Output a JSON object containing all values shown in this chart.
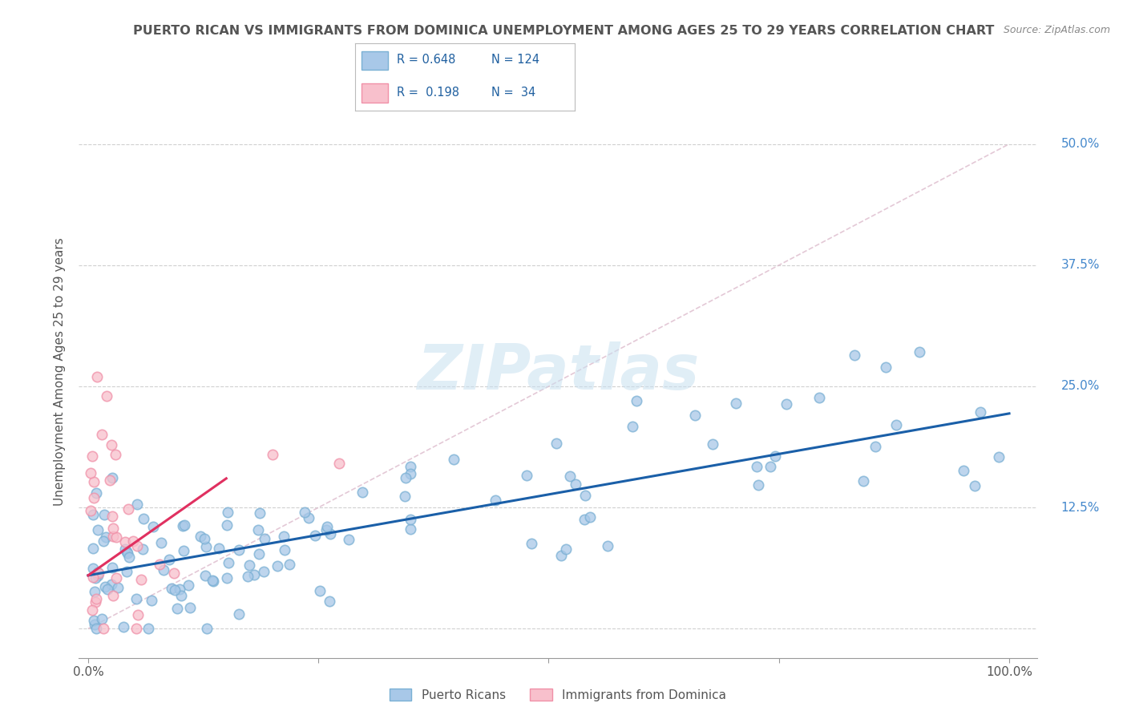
{
  "title": "PUERTO RICAN VS IMMIGRANTS FROM DOMINICA UNEMPLOYMENT AMONG AGES 25 TO 29 YEARS CORRELATION CHART",
  "source": "Source: ZipAtlas.com",
  "ylabel": "Unemployment Among Ages 25 to 29 years",
  "xlim": [
    -0.01,
    1.03
  ],
  "ylim": [
    -0.03,
    0.56
  ],
  "xtick_vals": [
    0.0,
    0.25,
    0.5,
    0.75,
    1.0
  ],
  "xticklabels_sparse": [
    "0.0%",
    "",
    "",
    "",
    "100.0%"
  ],
  "ytick_vals": [
    0.0,
    0.125,
    0.25,
    0.375,
    0.5
  ],
  "yticklabels": [
    "",
    "12.5%",
    "25.0%",
    "37.5%",
    "50.0%"
  ],
  "blue_R": 0.648,
  "blue_N": 124,
  "pink_R": 0.198,
  "pink_N": 34,
  "blue_color": "#a8c8e8",
  "blue_edge": "#7ab0d4",
  "pink_color": "#f8c0cc",
  "pink_edge": "#f090a8",
  "blue_line_color": "#1a5fa8",
  "pink_line_color": "#e03060",
  "diag_color": "#cccccc",
  "watermark": "ZIPatlas",
  "legend_label_blue": "Puerto Ricans",
  "legend_label_pink": "Immigrants from Dominica",
  "background_color": "#ffffff",
  "grid_color": "#d0d0d0",
  "ytick_label_color": "#4488cc",
  "title_color": "#555555",
  "legend_text_color": "#2060a0"
}
